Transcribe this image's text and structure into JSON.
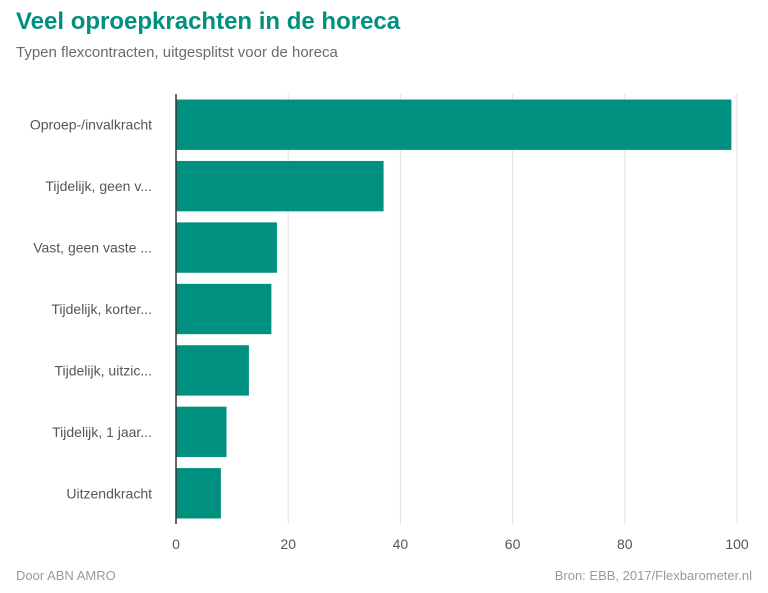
{
  "header": {
    "title": "Veel oproepkrachten in de horeca",
    "subtitle": "Typen flexcontracten, uitgesplitst voor de horeca"
  },
  "footer": {
    "credit": "Door ABN AMRO",
    "source": "Bron: EBB, 2017/Flexbarometer.nl"
  },
  "colors": {
    "bar": "#00907f",
    "grid": "#e0e0e0",
    "axis": "#333333"
  },
  "chart_data": {
    "type": "bar",
    "orientation": "horizontal",
    "title": "Veel oproepkrachten in de horeca",
    "subtitle": "Typen flexcontracten, uitgesplitst voor de horeca",
    "categories": [
      "Oproep-/invalkracht",
      "Tijdelijk, geen v...",
      "Vast, geen vaste ...",
      "Tijdelijk, korter...",
      "Tijdelijk, uitzic...",
      "Tijdelijk, 1 jaar...",
      "Uitzendkracht"
    ],
    "values": [
      99,
      37,
      18,
      17,
      13,
      9,
      8
    ],
    "xlim": [
      0,
      100
    ],
    "xticks": [
      0,
      20,
      40,
      60,
      80,
      100
    ],
    "xlabel": "",
    "ylabel": "",
    "grid": true,
    "legend": "none"
  }
}
